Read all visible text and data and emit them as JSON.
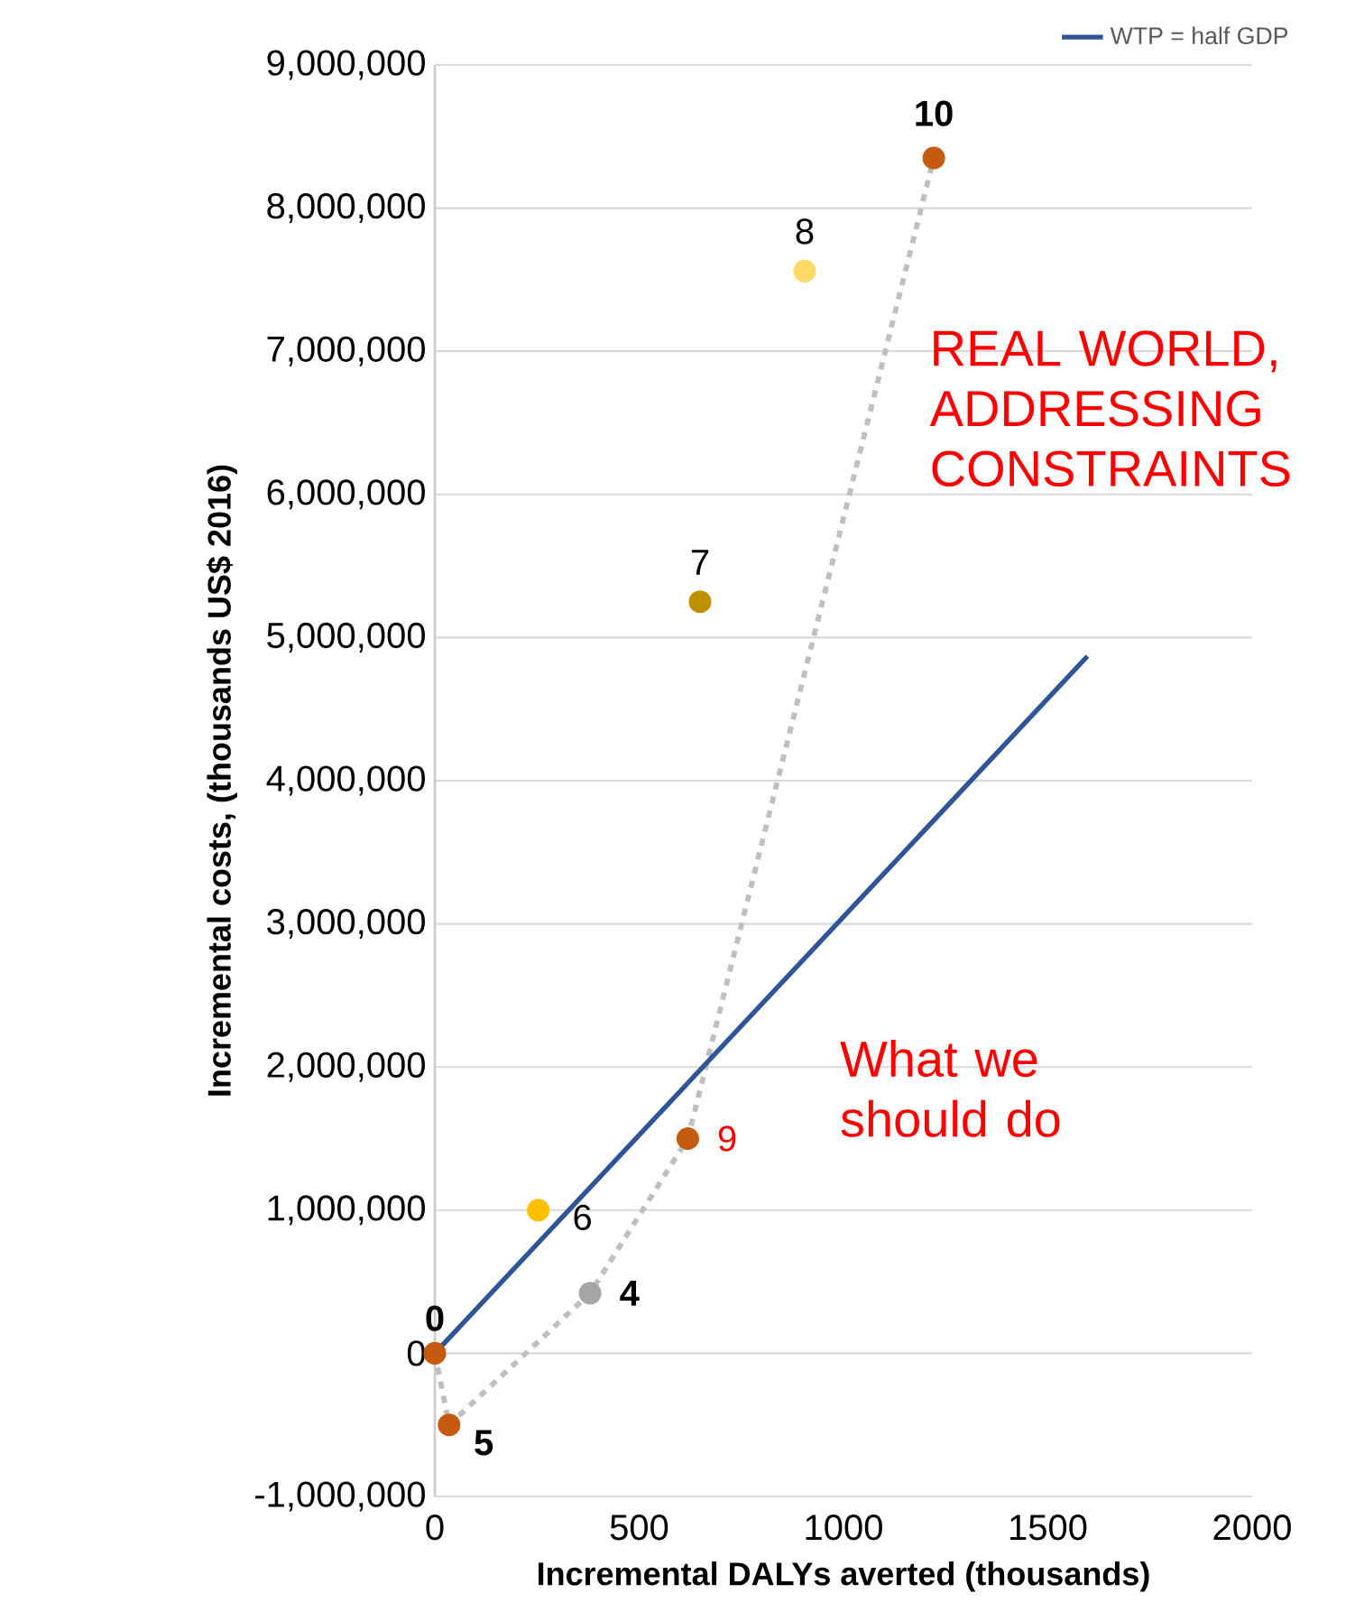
{
  "chart_data": {
    "type": "scatter",
    "xlabel": "Incremental DALYs averted (thousands)",
    "ylabel": "Incremental costs, (thousands US$ 2016)",
    "xlim": [
      0,
      2000
    ],
    "xticks": [
      0,
      500,
      1000,
      1500,
      2000
    ],
    "ylim": [
      -1000000,
      9000000
    ],
    "yticks": [
      {
        "value": -1000000,
        "label": "-1,000,000"
      },
      0,
      {
        "value": 1000000,
        "label": "1,000,000"
      },
      {
        "value": 2000000,
        "label": "2,000,000"
      },
      {
        "value": 3000000,
        "label": "3,000,000"
      },
      {
        "value": 4000000,
        "label": "4,000,000"
      },
      {
        "value": 5000000,
        "label": "5,000,000"
      },
      {
        "value": 6000000,
        "label": "6,000,000"
      },
      {
        "value": 7000000,
        "label": "7,000,000"
      },
      {
        "value": 8000000,
        "label": "8,000,000"
      },
      {
        "value": 9000000,
        "label": "9,000,000"
      }
    ],
    "grid": "y",
    "legend": "top right",
    "series": [
      {
        "marker": "circle",
        "x": [
          0,
          35,
          380,
          253,
          619,
          649,
          905,
          1221
        ],
        "values": [
          0,
          -500000,
          420000,
          1000000,
          1500000,
          5250000,
          7560000,
          8350000
        ],
        "colors": [
          "#c55a11",
          "#c55a11",
          "#a5a5a5",
          "#ffc000",
          "#c55a11",
          "#bf9000",
          "#ffd966",
          "#c55a11"
        ]
      },
      {
        "type": "line",
        "x": [
          0,
          35,
          380,
          619,
          1221
        ],
        "values": [
          0,
          -500000,
          420000,
          1500000,
          8350000
        ],
        "color": "#bfbfbf",
        "line_style": "dotted",
        "marker": "none"
      },
      {
        "type": "line",
        "name": "WTP = half GDP",
        "x": [
          0,
          1597
        ],
        "values": [
          0,
          4870000
        ],
        "color": "#2f5597",
        "line_style": "solid",
        "marker": "none"
      }
    ],
    "annotations": [
      {
        "text": "0",
        "x": 0,
        "y": 0
      },
      {
        "text": "5",
        "x": 35,
        "y": -500000
      },
      {
        "text": "4",
        "x": 380,
        "y": 420000
      },
      {
        "text": "6",
        "x": 253,
        "y": 1000000
      },
      {
        "text": "9",
        "x": 619,
        "y": 1500000
      },
      {
        "text": "7",
        "x": 649,
        "y": 5250000
      },
      {
        "text": "8",
        "x": 905,
        "y": 7560000
      },
      {
        "text": "10",
        "x": 1221,
        "y": 8350000
      },
      "REAL WORLD, ADDRESSING CONSTRAINTS",
      "What we should do"
    ]
  }
}
